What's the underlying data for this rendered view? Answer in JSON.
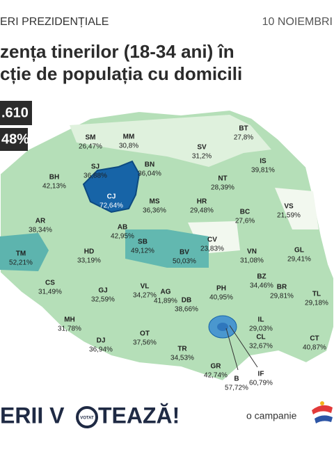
{
  "header": {
    "section": "ERI PREZIDENȚIALE",
    "date": "10 NOIEMBRI"
  },
  "title": {
    "line1": "zența tinerilor (18-34 ani) în",
    "line2": "cție de populația cu domicili"
  },
  "totals": {
    "count": ".610",
    "percent": "48%"
  },
  "counties": [
    {
      "code": "SM",
      "value": "26,47%"
    },
    {
      "code": "MM",
      "value": "30,8%"
    },
    {
      "code": "BT",
      "value": "27,8%"
    },
    {
      "code": "SJ",
      "value": "36,88%"
    },
    {
      "code": "BN",
      "value": "36,04%"
    },
    {
      "code": "SV",
      "value": "31,2%"
    },
    {
      "code": "IS",
      "value": "39,81%"
    },
    {
      "code": "BH",
      "value": "42,13%"
    },
    {
      "code": "CJ",
      "value": "72,64%"
    },
    {
      "code": "NT",
      "value": "28,39%"
    },
    {
      "code": "MS",
      "value": "36,36%"
    },
    {
      "code": "HR",
      "value": "29,48%"
    },
    {
      "code": "BC",
      "value": "27,6%"
    },
    {
      "code": "VS",
      "value": "21,59%"
    },
    {
      "code": "AR",
      "value": "38,34%"
    },
    {
      "code": "AB",
      "value": "42,95%"
    },
    {
      "code": "CV",
      "value": "23,83%"
    },
    {
      "code": "TM",
      "value": "52,21%"
    },
    {
      "code": "HD",
      "value": "33,19%"
    },
    {
      "code": "SB",
      "value": "49,12%"
    },
    {
      "code": "BV",
      "value": "50,03%"
    },
    {
      "code": "VN",
      "value": "31,08%"
    },
    {
      "code": "GL",
      "value": "29,41%"
    },
    {
      "code": "BZ",
      "value": "34,46%"
    },
    {
      "code": "CS",
      "value": "31,49%"
    },
    {
      "code": "GJ",
      "value": "32,59%"
    },
    {
      "code": "VL",
      "value": "34,27%"
    },
    {
      "code": "AG",
      "value": "41,89%"
    },
    {
      "code": "PH",
      "value": "40,95%"
    },
    {
      "code": "BR",
      "value": "29,81%"
    },
    {
      "code": "TL",
      "value": "29,18%"
    },
    {
      "code": "DB",
      "value": "38,66%"
    },
    {
      "code": "MH",
      "value": "31,78%"
    },
    {
      "code": "IL",
      "value": "29,03%"
    },
    {
      "code": "OT",
      "value": "37,56%"
    },
    {
      "code": "CL",
      "value": "32,67%"
    },
    {
      "code": "CT",
      "value": "40,87%"
    },
    {
      "code": "DJ",
      "value": "36,94%"
    },
    {
      "code": "TR",
      "value": "34,53%"
    },
    {
      "code": "GR",
      "value": "42,74%"
    },
    {
      "code": "IF",
      "value": "60,79%"
    },
    {
      "code": "B",
      "value": "57,72%"
    }
  ],
  "footer": {
    "brand_left": "ERII V",
    "badge": "VOTAT",
    "brand_right": "TEAZĂ!",
    "campaign": "o campanie"
  }
}
